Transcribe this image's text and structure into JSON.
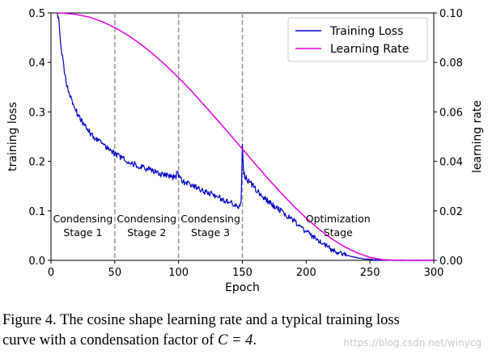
{
  "chart_data": {
    "type": "line",
    "x_label": "Epoch",
    "y_left_label": "training loss",
    "y_right_label": "learning rate",
    "xlim": [
      0,
      300
    ],
    "ylim_left": [
      0.0,
      0.5
    ],
    "ylim_right": [
      0.0,
      0.1
    ],
    "x_ticks": [
      "0",
      "50",
      "100",
      "150",
      "200",
      "250",
      "300"
    ],
    "x_tick_values": [
      0,
      50,
      100,
      150,
      200,
      250,
      300
    ],
    "y_left_ticks": [
      "0.0",
      "0.1",
      "0.2",
      "0.3",
      "0.4",
      "0.5"
    ],
    "y_left_tick_values": [
      0.0,
      0.1,
      0.2,
      0.3,
      0.4,
      0.5
    ],
    "y_right_ticks": [
      "0.00",
      "0.02",
      "0.04",
      "0.06",
      "0.08",
      "0.10"
    ],
    "y_right_tick_values": [
      0.0,
      0.02,
      0.04,
      0.06,
      0.08,
      0.1
    ],
    "stage_boundaries": [
      50,
      100,
      150
    ],
    "stages": [
      {
        "line1": "Condensing",
        "line2": "Stage 1",
        "x": 25
      },
      {
        "line1": "Condensing",
        "line2": "Stage 2",
        "x": 75
      },
      {
        "line1": "Condensing",
        "line2": "Stage 3",
        "x": 125
      },
      {
        "line1": "Optimization",
        "line2": "Stage",
        "x": 225
      }
    ],
    "legend_position": "top-right",
    "series": [
      {
        "name": "Training Loss",
        "axis": "left",
        "color": "#0000cc",
        "x": [
          5,
          6,
          7,
          8,
          10,
          12,
          15,
          18,
          22,
          26,
          30,
          35,
          40,
          45,
          50,
          55,
          60,
          65,
          70,
          75,
          80,
          85,
          90,
          95,
          98,
          99,
          100,
          101,
          103,
          108,
          115,
          120,
          125,
          130,
          135,
          140,
          145,
          148,
          149,
          150,
          151,
          152,
          155,
          160,
          165,
          170,
          175,
          180,
          185,
          190,
          195,
          200,
          205,
          210,
          215,
          220,
          225,
          230,
          235,
          240,
          245,
          250,
          255,
          260,
          270,
          280,
          290,
          300
        ],
        "y": [
          0.5,
          0.49,
          0.46,
          0.43,
          0.39,
          0.36,
          0.33,
          0.31,
          0.29,
          0.275,
          0.26,
          0.245,
          0.235,
          0.225,
          0.215,
          0.208,
          0.2,
          0.195,
          0.19,
          0.185,
          0.18,
          0.175,
          0.172,
          0.168,
          0.17,
          0.18,
          0.17,
          0.165,
          0.16,
          0.155,
          0.145,
          0.14,
          0.135,
          0.13,
          0.122,
          0.118,
          0.112,
          0.108,
          0.12,
          0.23,
          0.18,
          0.17,
          0.16,
          0.145,
          0.13,
          0.12,
          0.11,
          0.1,
          0.09,
          0.08,
          0.07,
          0.058,
          0.048,
          0.038,
          0.03,
          0.022,
          0.016,
          0.012,
          0.008,
          0.005,
          0.003,
          0.002,
          0.001,
          0.0005,
          0.0003,
          0.0002,
          0.0001,
          0.0001
        ]
      },
      {
        "name": "Learning Rate",
        "axis": "right",
        "color": "#e600e6",
        "x": [
          5,
          10,
          20,
          30,
          40,
          50,
          60,
          70,
          80,
          90,
          100,
          110,
          120,
          130,
          140,
          150,
          160,
          170,
          180,
          190,
          200,
          210,
          220,
          230,
          240,
          250,
          260,
          270,
          280,
          290,
          300
        ],
        "y": [
          0.1,
          0.0999,
          0.0994,
          0.0983,
          0.0965,
          0.0941,
          0.0911,
          0.0875,
          0.0834,
          0.0788,
          0.0738,
          0.0685,
          0.0628,
          0.057,
          0.051,
          0.045,
          0.039,
          0.0331,
          0.0274,
          0.022,
          0.0171,
          0.0126,
          0.0087,
          0.0055,
          0.003,
          0.0012,
          0.0003,
          0.0,
          0.0,
          0.0,
          0.0
        ]
      }
    ]
  },
  "caption": {
    "line1": "Figure 4. The cosine shape learning rate and a typical training loss",
    "line2_prefix": "curve with a condensation factor of ",
    "line2_math": "C = 4",
    "line2_suffix": "."
  },
  "watermark": "https://blog.csdn.net/winycg"
}
